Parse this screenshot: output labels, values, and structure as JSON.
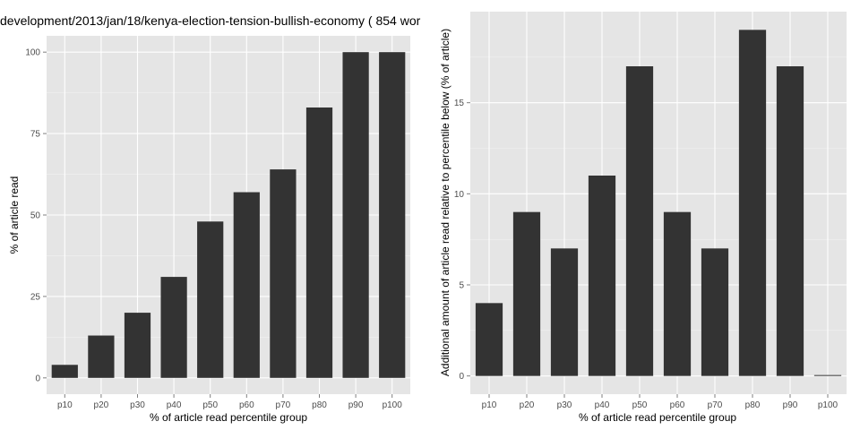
{
  "chart_data": [
    {
      "type": "bar",
      "title": "development/2013/jan/18/kenya-election-tension-bullish-economy ( 854 wor",
      "xlabel": "% of article read percentile group",
      "ylabel": "% of article read",
      "categories": [
        "p10",
        "p20",
        "p30",
        "p40",
        "p50",
        "p60",
        "p70",
        "p80",
        "p90",
        "p100"
      ],
      "values": [
        4,
        13,
        20,
        31,
        48,
        57,
        64,
        83,
        100,
        100
      ],
      "ylim": [
        -5,
        105
      ],
      "yticks": [
        "0",
        "25",
        "50",
        "75",
        "100"
      ],
      "grid": true,
      "bar_color": "#333333",
      "panel_color": "#e5e5e5",
      "grid_color": "#ffffff"
    },
    {
      "type": "bar",
      "title": "",
      "xlabel": "% of article read percentile group",
      "ylabel": "Additional amount of article read relative to percentile below (% of article)",
      "categories": [
        "p10",
        "p20",
        "p30",
        "p40",
        "p50",
        "p60",
        "p70",
        "p80",
        "p90",
        "p100"
      ],
      "values": [
        4,
        9,
        7,
        11,
        17,
        9,
        7,
        19,
        17,
        0
      ],
      "ylim": [
        -1,
        20
      ],
      "yticks": [
        "0",
        "5",
        "10",
        "15"
      ],
      "grid": true,
      "bar_color": "#333333",
      "panel_color": "#e5e5e5",
      "grid_color": "#ffffff"
    }
  ]
}
